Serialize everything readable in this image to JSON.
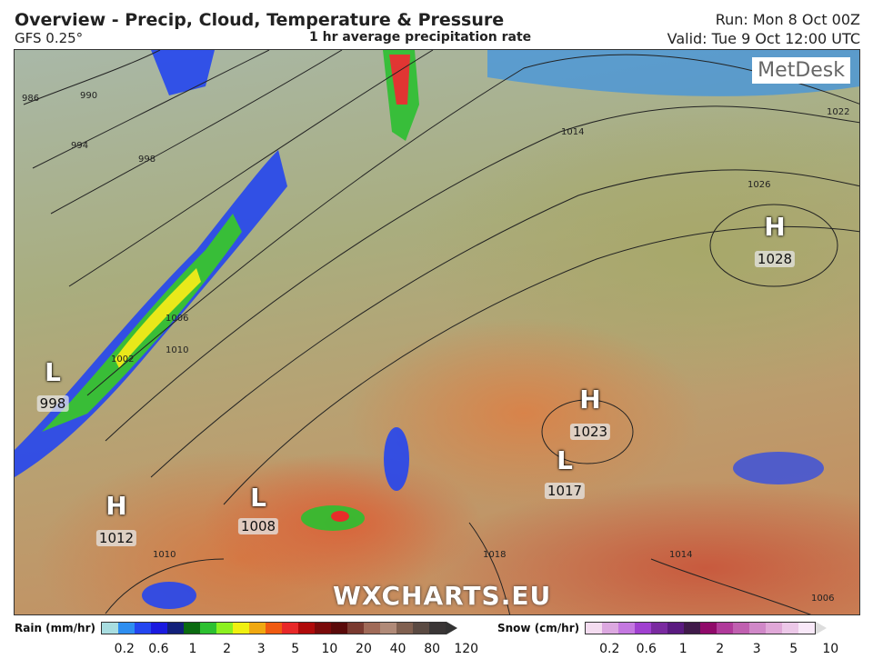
{
  "header": {
    "title": "Overview - Precip, Cloud, Temperature & Pressure",
    "model": "GFS 0.25°",
    "subtitle": "1 hr average precipitation rate",
    "run": "Run: Mon 8 Oct 00Z",
    "valid": "Valid: Tue 9 Oct 12:00 UTC"
  },
  "map": {
    "logo": "MetDesk",
    "watermark": "WXCHARTS.EU",
    "centers": [
      {
        "type": "H",
        "value": "1028"
      },
      {
        "type": "L",
        "value": "998"
      },
      {
        "type": "H",
        "value": "1023"
      },
      {
        "type": "L",
        "value": "1017"
      },
      {
        "type": "H",
        "value": "1012"
      },
      {
        "type": "L",
        "value": "1008"
      }
    ],
    "isobar_labels": [
      "986",
      "990",
      "994",
      "998",
      "1002",
      "1006",
      "1010",
      "1010",
      "1014",
      "1014",
      "1018",
      "1022",
      "1026",
      "1006"
    ]
  },
  "legend": {
    "rain": {
      "label": "Rain (mm/hr)",
      "ticks": [
        "0.2",
        "0.6",
        "1",
        "2",
        "3",
        "5",
        "10",
        "20",
        "40",
        "80",
        "120"
      ],
      "colors": [
        "#a8dde0",
        "#2e8ef0",
        "#2446f0",
        "#1a1ae0",
        "#12207a",
        "#0a6a10",
        "#2cc030",
        "#8cf020",
        "#f0f010",
        "#f0a810",
        "#f05a10",
        "#e82828",
        "#b00a0a",
        "#7a0a0a",
        "#5a0a0a",
        "#7a3a30",
        "#a06a58",
        "#b08a78",
        "#806050",
        "#5a4a42",
        "#3a3636"
      ]
    },
    "snow": {
      "label": "Snow (cm/hr)",
      "ticks": [
        "0.2",
        "0.6",
        "1",
        "2",
        "3",
        "5",
        "10"
      ],
      "colors": [
        "#f4dcf0",
        "#dca8e0",
        "#c478e0",
        "#a040d0",
        "#7a2aa0",
        "#5a1a80",
        "#401a4a",
        "#900a6a",
        "#b03a9a",
        "#c060b0",
        "#d088c8",
        "#e0a8d8",
        "#ecc8e8",
        "#f8e8f8"
      ]
    }
  }
}
